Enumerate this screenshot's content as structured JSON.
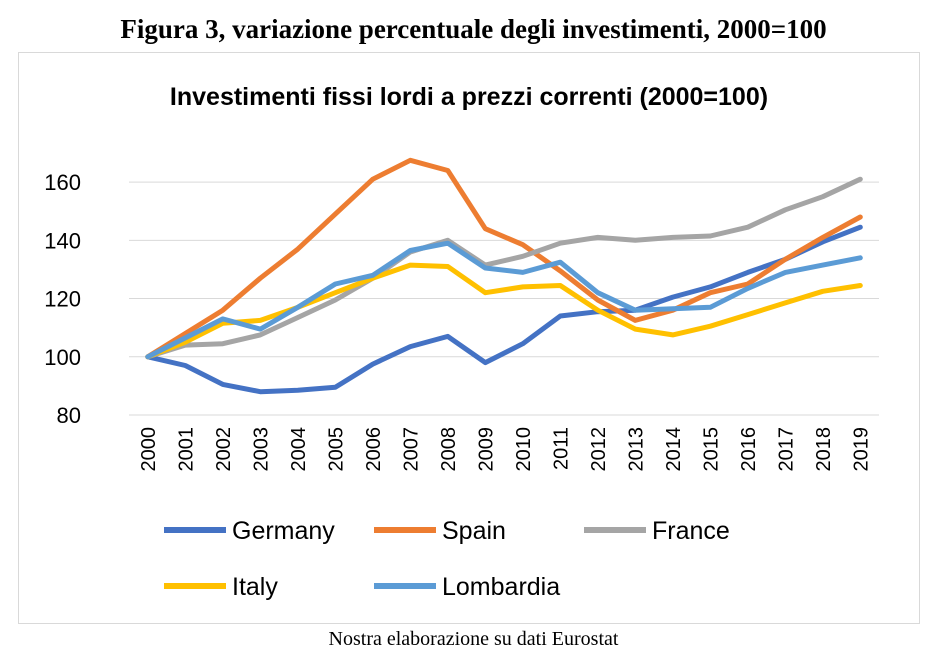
{
  "figure_title": "Figura 3, variazione percentuale degli investimenti, 2000=100",
  "caption": "Nostra elaborazione su dati Eurostat",
  "chart_data": {
    "type": "line",
    "title": "Investimenti fissi lordi a prezzi correnti (2000=100)",
    "xlabel": "",
    "ylabel": "",
    "ylim": [
      80,
      170
    ],
    "yticks": [
      80,
      100,
      120,
      140,
      160
    ],
    "grid": true,
    "legend_position": "bottom",
    "x": [
      "2000",
      "2001",
      "2002",
      "2003",
      "2004",
      "2005",
      "2006",
      "2007",
      "2008",
      "2009",
      "2010",
      "2011",
      "2012",
      "2013",
      "2014",
      "2015",
      "2016",
      "2017",
      "2018",
      "2019"
    ],
    "series": [
      {
        "name": "Germany",
        "color": "#4472C4",
        "values": [
          100,
          97,
          90.5,
          88,
          88.5,
          89.5,
          97.5,
          103.5,
          107,
          98,
          104.5,
          114,
          115.5,
          116,
          120.5,
          124,
          129,
          133.5,
          139.5,
          144.5
        ]
      },
      {
        "name": "Spain",
        "color": "#ED7D31",
        "values": [
          100,
          108,
          116,
          127,
          137,
          149,
          161,
          167.5,
          164,
          144,
          138.5,
          129.5,
          119.5,
          112.5,
          116,
          122,
          125,
          133.5,
          141,
          148
        ]
      },
      {
        "name": "France",
        "color": "#A5A5A5",
        "values": [
          100,
          104,
          104.5,
          107.5,
          113.5,
          119.5,
          127,
          136,
          140,
          131.5,
          134.5,
          139,
          141,
          140,
          141,
          141.5,
          144.5,
          150.5,
          155,
          161
        ]
      },
      {
        "name": "Italy",
        "color": "#FFC000",
        "values": [
          100,
          105,
          111.5,
          112.5,
          117,
          122,
          127,
          131.5,
          131,
          122,
          124,
          124.5,
          116,
          109.5,
          107.5,
          110.5,
          114.5,
          118.5,
          122.5,
          124.5
        ]
      },
      {
        "name": "Lombardia",
        "color": "#5B9BD5",
        "values": [
          100,
          106.5,
          113,
          109.5,
          117,
          125,
          128,
          136.5,
          139,
          130.5,
          129,
          132.5,
          122,
          116,
          116.5,
          117,
          123.5,
          129,
          131.5,
          134
        ]
      }
    ]
  }
}
